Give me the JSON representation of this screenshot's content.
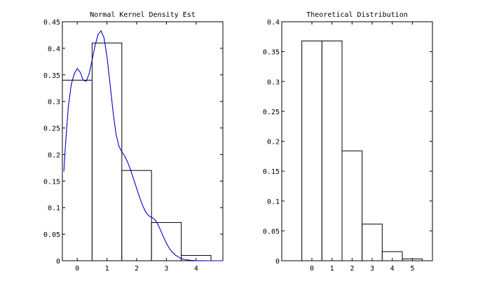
{
  "chart_data": [
    {
      "type": "bar",
      "title": "Normal Kernel Density Est",
      "xlim": [
        -0.5,
        4.9
      ],
      "ylim": [
        0,
        0.45
      ],
      "xticks": [
        0,
        1,
        2,
        3,
        4
      ],
      "yticks": [
        0,
        0.05,
        0.1,
        0.15,
        0.2,
        0.25,
        0.3,
        0.35,
        0.4,
        0.45
      ],
      "ytick_labels": [
        "0",
        "0.05",
        "0.1",
        "0.15",
        "0.2",
        "0.25",
        "0.3",
        "0.35",
        "0.4",
        "0.45"
      ],
      "bar_width": 1,
      "categories": [
        0,
        1,
        2,
        3,
        4
      ],
      "values": [
        0.34,
        0.41,
        0.17,
        0.072,
        0.01
      ],
      "overlay": {
        "type": "line",
        "color": "#0000cc",
        "x": [
          -0.45,
          -0.4,
          -0.3,
          -0.2,
          -0.1,
          0.0,
          0.1,
          0.2,
          0.3,
          0.4,
          0.5,
          0.6,
          0.7,
          0.8,
          0.9,
          1.0,
          1.1,
          1.2,
          1.3,
          1.4,
          1.5,
          1.6,
          1.7,
          1.8,
          1.9,
          2.0,
          2.1,
          2.2,
          2.3,
          2.4,
          2.5,
          2.6,
          2.7,
          2.8,
          2.9,
          3.0,
          3.1,
          3.2,
          3.3,
          3.4,
          3.5,
          3.6,
          3.7,
          3.8,
          3.9,
          4.0,
          4.2,
          4.4,
          4.6,
          4.8,
          4.9
        ],
        "y": [
          0.168,
          0.215,
          0.29,
          0.332,
          0.352,
          0.362,
          0.355,
          0.34,
          0.338,
          0.352,
          0.378,
          0.405,
          0.426,
          0.433,
          0.42,
          0.385,
          0.335,
          0.283,
          0.24,
          0.216,
          0.205,
          0.197,
          0.185,
          0.17,
          0.153,
          0.136,
          0.119,
          0.104,
          0.092,
          0.085,
          0.082,
          0.078,
          0.07,
          0.058,
          0.045,
          0.033,
          0.023,
          0.016,
          0.011,
          0.007,
          0.004,
          0.0025,
          0.0015,
          0.001,
          0.0006,
          0.0003,
          0.0001,
          0,
          0,
          0,
          0
        ]
      }
    },
    {
      "type": "bar",
      "title": "Theoretical Distribution",
      "xlim": [
        -1.5,
        6
      ],
      "ylim": [
        0,
        0.4
      ],
      "xticks": [
        0,
        1,
        2,
        3,
        4,
        5
      ],
      "yticks": [
        0,
        0.05,
        0.1,
        0.15,
        0.2,
        0.25,
        0.3,
        0.35,
        0.4
      ],
      "ytick_labels": [
        "0",
        "0.05",
        "0.1",
        "0.15",
        "0.2",
        "0.25",
        "0.3",
        "0.35",
        "0.4"
      ],
      "bar_width": 1,
      "categories": [
        0,
        1,
        2,
        3,
        4,
        5
      ],
      "values": [
        0.3679,
        0.3679,
        0.1839,
        0.0613,
        0.0153,
        0.0031
      ]
    }
  ]
}
